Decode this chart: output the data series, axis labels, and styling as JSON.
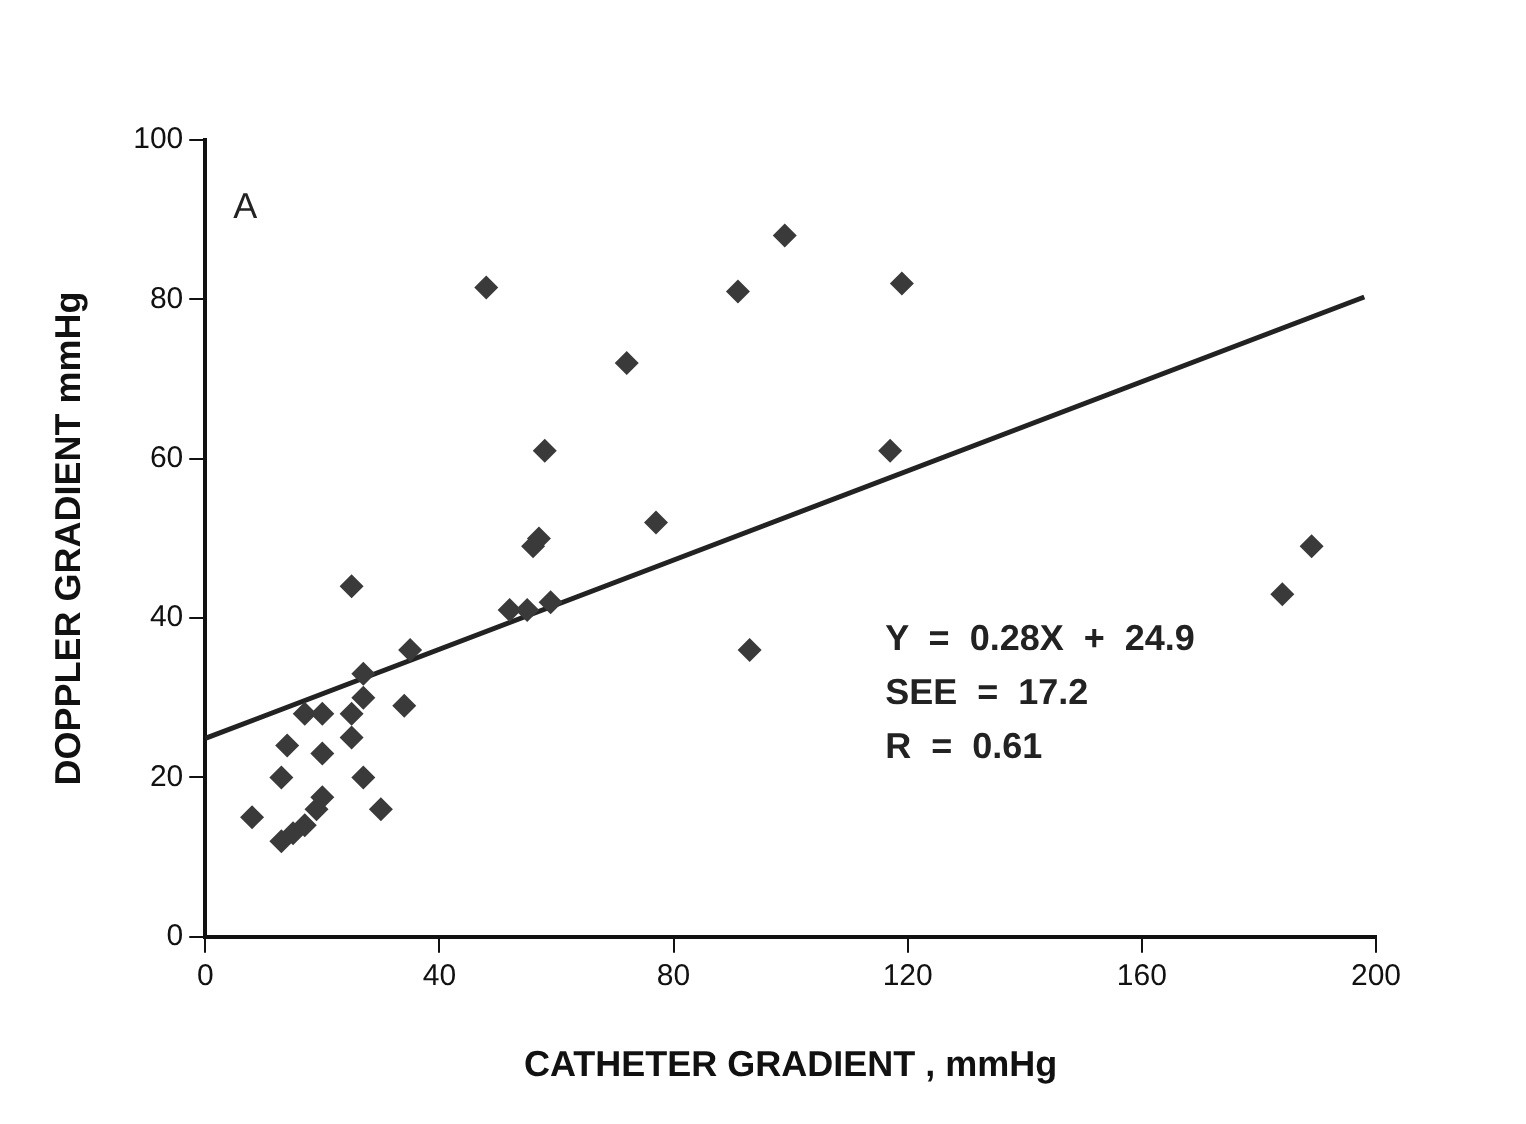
{
  "chart_data": {
    "type": "scatter",
    "xlabel": "CATHETER GRADIENT , mmHg",
    "ylabel": "DOPPLER GRADIENT mmHg",
    "xlim": [
      0,
      200
    ],
    "xticks": [
      0,
      40,
      80,
      120,
      160,
      200
    ],
    "ylim": [
      0,
      100
    ],
    "yticks": [
      0,
      20,
      40,
      60,
      80,
      100
    ],
    "grid": false,
    "legend": false,
    "marker": "diamond",
    "annotations": [
      "A",
      "Y = 0.28X + 24.9",
      "SEE = 17.2",
      "R = 0.61"
    ],
    "series": [
      {
        "color": "#3a3a3a",
        "x": [
          99,
          48,
          91,
          119,
          72,
          58,
          117,
          77,
          56,
          57,
          25,
          189,
          184,
          52,
          55,
          59,
          93,
          35,
          27,
          17,
          20,
          25,
          27,
          34,
          14,
          20,
          25,
          13,
          27,
          8,
          30,
          13,
          15,
          17,
          19,
          20
        ],
        "values": [
          88,
          81.5,
          81,
          82,
          72,
          61,
          61,
          52,
          49,
          50,
          44,
          49,
          43,
          41,
          41,
          42,
          36,
          36,
          33,
          28,
          28,
          28,
          30,
          29,
          24,
          23,
          25,
          20,
          20,
          15,
          16,
          12,
          13,
          14,
          16,
          17.5
        ]
      },
      {
        "type": "line",
        "color": "#222222",
        "marker": "none",
        "x": [
          0,
          198
        ],
        "values": [
          24.9,
          80.3
        ]
      }
    ]
  }
}
